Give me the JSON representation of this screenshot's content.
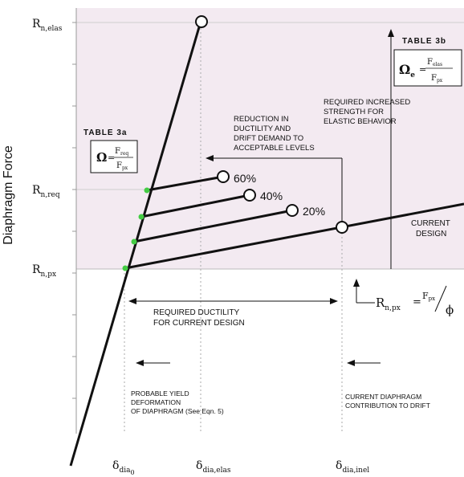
{
  "axis": {
    "y_title": "Diaphragm Force",
    "y_ticks": [
      {
        "base": "R",
        "sub": "n,elas"
      },
      {
        "base": "R",
        "sub": "n,req"
      },
      {
        "base": "R",
        "sub": "n,px"
      }
    ],
    "x_ticks": [
      {
        "base": "δ",
        "sub": "dia",
        "sub2": "0"
      },
      {
        "base": "δ",
        "sub": "dia,elas"
      },
      {
        "base": "δ",
        "sub": "dia,inel"
      }
    ]
  },
  "tables": {
    "table3a": {
      "title": "TABLE 3a",
      "symbol": "Ω",
      "num": "F",
      "num_sub": "req",
      "den": "F",
      "den_sub": "px"
    },
    "table3b": {
      "title": "TABLE 3b",
      "symbol": "Ω",
      "symbol_sub": "e",
      "num": "F",
      "num_sub": "elas",
      "den": "F",
      "den_sub": "px"
    }
  },
  "curves": [
    {
      "label": "60%"
    },
    {
      "label": "40%"
    },
    {
      "label": "20%"
    },
    {
      "label_lines": [
        "CURRENT",
        "DESIGN"
      ]
    }
  ],
  "annotations": {
    "reduction": [
      "REDUCTION IN",
      "DUCTILITY AND",
      "DRIFT DEMAND TO",
      "ACCEPTABLE LEVELS"
    ],
    "increased": [
      "REQUIRED INCREASED",
      "STRENGTH FOR",
      "ELASTIC BEHAVIOR"
    ],
    "ductility": [
      "REQUIRED DUCTILITY",
      "FOR CURRENT DESIGN"
    ],
    "yield": [
      "PROBABLE YIELD",
      "DEFORMATION",
      "OF DIAPHRAGM (See Eqn. 5)"
    ],
    "drift": [
      "CURRENT DIAPHRAGM",
      "CONTRIBUTION TO DRIFT"
    ]
  },
  "equation": {
    "lhs": "R",
    "lhs_sub": "n,px",
    "eq": "=",
    "num": "F",
    "num_sub": "px",
    "den": "ϕ"
  },
  "colors": {
    "shade": "#f3eaf1",
    "dot": "#44cc44",
    "line": "#111111",
    "grid": "#cfcfcf"
  }
}
